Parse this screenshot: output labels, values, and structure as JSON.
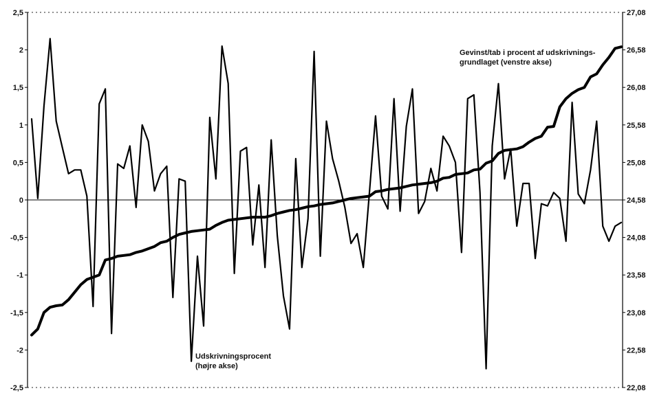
{
  "chart_data": {
    "type": "line",
    "title": "",
    "xlabel": "",
    "ylabel": "",
    "ylim_left": [
      -2.5,
      2.5
    ],
    "ylim_right": [
      22.08,
      27.08
    ],
    "left_ticks": [
      "-2,5",
      "-2",
      "-1,5",
      "-1",
      "-0,5",
      "0",
      "0,5",
      "1",
      "1,5",
      "2",
      "2,5"
    ],
    "right_ticks": [
      "22,08",
      "22,58",
      "23,08",
      "23,58",
      "24,08",
      "24,58",
      "25,08",
      "25,58",
      "26,08",
      "26,58",
      "27,08"
    ],
    "grid": false,
    "zero_line": true,
    "annotations": [
      {
        "lines": [
          "Gevinst/tab i procent af udskrivnings-",
          "grundlaget (venstre akse)"
        ]
      },
      {
        "lines": [
          "Udskrivningsprocent",
          "(højre akse)"
        ]
      }
    ],
    "series": [
      {
        "name": "Gevinst/tab i procent af udskrivningsgrundlaget (venstre akse)",
        "axis": "left",
        "values": [
          1.08,
          0.02,
          1.25,
          2.15,
          1.05,
          0.7,
          0.35,
          0.4,
          0.4,
          0.05,
          -1.42,
          1.28,
          1.48,
          -1.78,
          0.48,
          0.42,
          0.72,
          -0.1,
          1.0,
          0.78,
          0.12,
          0.35,
          0.45,
          -1.3,
          0.28,
          0.25,
          -2.15,
          -0.75,
          -1.68,
          1.1,
          0.28,
          2.05,
          1.55,
          -0.98,
          0.65,
          0.7,
          -0.6,
          0.2,
          -0.9,
          0.8,
          -0.48,
          -1.28,
          -1.72,
          0.55,
          -0.9,
          -0.25,
          1.98,
          -0.75,
          1.05,
          0.55,
          0.25,
          -0.1,
          -0.58,
          -0.45,
          -0.9,
          0.1,
          1.12,
          0.05,
          -0.12,
          1.35,
          -0.15,
          0.98,
          1.48,
          -0.18,
          -0.02,
          0.42,
          0.12,
          0.85,
          0.72,
          0.5,
          -0.7,
          1.35,
          1.4,
          0.1,
          -2.25,
          0.72,
          1.55,
          0.28,
          0.68,
          -0.35,
          0.22,
          0.22,
          -0.78,
          -0.05,
          -0.08,
          0.1,
          0.02,
          -0.55,
          1.3,
          0.08,
          -0.05,
          0.4,
          1.05,
          -0.35,
          -0.55,
          -0.35,
          -0.3
        ]
      },
      {
        "name": "Udskrivningsprocent (højre akse)",
        "axis": "right",
        "values": [
          22.78,
          22.86,
          23.08,
          23.15,
          23.17,
          23.18,
          23.25,
          23.35,
          23.45,
          23.52,
          23.55,
          23.58,
          23.78,
          23.8,
          23.83,
          23.84,
          23.85,
          23.88,
          23.9,
          23.93,
          23.96,
          24.01,
          24.03,
          24.08,
          24.12,
          24.14,
          24.16,
          24.17,
          24.18,
          24.19,
          24.24,
          24.28,
          24.31,
          24.32,
          24.33,
          24.34,
          24.35,
          24.35,
          24.35,
          24.37,
          24.4,
          24.42,
          24.44,
          24.45,
          24.47,
          24.49,
          24.5,
          24.52,
          24.53,
          24.54,
          24.56,
          24.58,
          24.6,
          24.61,
          24.62,
          24.63,
          24.69,
          24.7,
          24.72,
          24.73,
          24.74,
          24.76,
          24.78,
          24.79,
          24.8,
          24.81,
          24.83,
          24.87,
          24.88,
          24.92,
          24.93,
          24.94,
          24.98,
          24.99,
          25.07,
          25.1,
          25.2,
          25.24,
          25.25,
          25.26,
          25.29,
          25.35,
          25.4,
          25.43,
          25.55,
          25.56,
          25.82,
          25.93,
          26.0,
          26.05,
          26.08,
          26.22,
          26.26,
          26.38,
          26.48,
          26.6,
          26.62
        ]
      }
    ]
  }
}
